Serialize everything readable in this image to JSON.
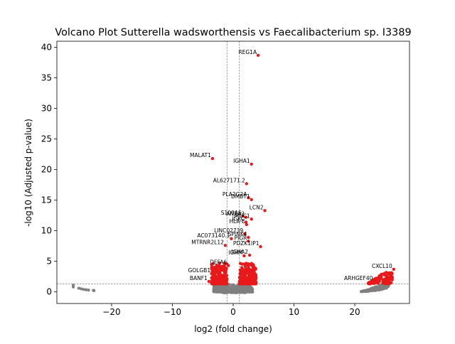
{
  "chart_data": {
    "type": "scatter",
    "title": "Volcano Plot Sutterella wadsworthensis vs Faecalibacterium sp. I3389",
    "xlabel": "log2 (fold change)",
    "ylabel": "-log10 (Adjusted p-value)",
    "xlim": [
      -29,
      29
    ],
    "ylim": [
      -1.9,
      41
    ],
    "x_ticks": [
      -20,
      -10,
      0,
      10,
      20
    ],
    "y_ticks": [
      0,
      5,
      10,
      15,
      20,
      25,
      30,
      35,
      40
    ],
    "grid": false,
    "thresholds": {
      "log2fc": [
        -1,
        1
      ],
      "neg_log10_padj": 1.3
    },
    "colors": {
      "significant": "#e8191a",
      "not_significant": "#7f7f7f",
      "threshold_line": "#808080"
    },
    "labeled_points": [
      {
        "gene": "REG1A",
        "x": 4.1,
        "y": 38.7
      },
      {
        "gene": "MALAT1",
        "x": -3.4,
        "y": 21.8
      },
      {
        "gene": "IGHA1",
        "x": 3.0,
        "y": 20.9
      },
      {
        "gene": "AL627171.2",
        "x": 2.2,
        "y": 17.7
      },
      {
        "gene": "PLA2G2A",
        "x": 2.5,
        "y": 15.4
      },
      {
        "gene": "DMBT1",
        "x": 3.0,
        "y": 15.1
      },
      {
        "gene": "LCN2",
        "x": 5.2,
        "y": 13.3
      },
      {
        "gene": "S100A6",
        "x": 1.6,
        "y": 12.4
      },
      {
        "gene": "ANXA3",
        "x": 2.1,
        "y": 12.2
      },
      {
        "gene": "MUC1",
        "x": 3.0,
        "y": 11.9
      },
      {
        "gene": "IGKC",
        "x": 2.1,
        "y": 11.4
      },
      {
        "gene": "HLA-E",
        "x": 2.2,
        "y": 11.0
      },
      {
        "gene": "LINC02739",
        "x": 1.9,
        "y": 9.5
      },
      {
        "gene": "AC073140.1",
        "x": -0.3,
        "y": 8.7
      },
      {
        "gene": "SPINK4",
        "x": 2.5,
        "y": 8.9
      },
      {
        "gene": "PIGR",
        "x": 2.5,
        "y": 8.3
      },
      {
        "gene": "MTRNR2L12",
        "x": -1.3,
        "y": 7.6
      },
      {
        "gene": "PDZK1IP1",
        "x": 4.5,
        "y": 7.4
      },
      {
        "gene": "IGHA2",
        "x": 2.7,
        "y": 6.0
      },
      {
        "gene": "IGHM",
        "x": 1.8,
        "y": 5.9
      },
      {
        "gene": "DEFA6",
        "x": -0.8,
        "y": 4.3
      },
      {
        "gene": "GOLGB1",
        "x": -3.5,
        "y": 3.0
      },
      {
        "gene": "BANF1",
        "x": -4.0,
        "y": 1.7
      },
      {
        "gene": "CXCL10",
        "x": 26.4,
        "y": 3.7
      },
      {
        "gene": "ARHGEF40",
        "x": 23.2,
        "y": 1.7
      }
    ]
  }
}
